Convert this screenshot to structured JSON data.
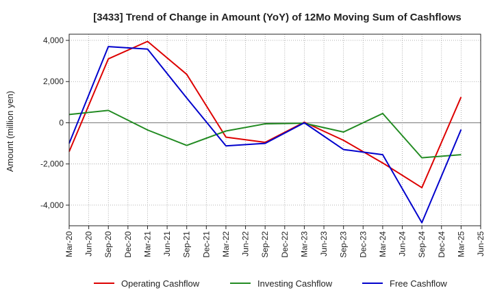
{
  "chart_data": {
    "type": "line",
    "title": "[3433]  Trend of Change in Amount (YoY) of 12Mo Moving Sum of Cashflows",
    "xlabel": "",
    "ylabel": "Amount (million yen)",
    "ylim": [
      -5000,
      4300
    ],
    "yticks": [
      4000,
      2000,
      0,
      -2000,
      -4000
    ],
    "ytick_labels": [
      "4,000",
      "2,000",
      "0",
      "-2,000",
      "-4,000"
    ],
    "categories": [
      "Mar-20",
      "Jun-20",
      "Sep-20",
      "Dec-20",
      "Mar-21",
      "Jun-21",
      "Sep-21",
      "Dec-21",
      "Mar-22",
      "Jun-22",
      "Sep-22",
      "Dec-22",
      "Mar-23",
      "Jun-23",
      "Sep-23",
      "Dec-23",
      "Mar-24",
      "Jun-24",
      "Sep-24",
      "Dec-24",
      "Mar-25",
      "Jun-25"
    ],
    "grid": true,
    "legend_position": "bottom",
    "series": [
      {
        "name": "Operating Cashflow",
        "color": "#dd0000",
        "points": [
          [
            0,
            -1400
          ],
          [
            2,
            3100
          ],
          [
            4,
            3950
          ],
          [
            6,
            2350
          ],
          [
            8,
            -700
          ],
          [
            10,
            -950
          ],
          [
            12,
            30
          ],
          [
            14,
            -850
          ],
          [
            16,
            -1950
          ],
          [
            18,
            -3150
          ],
          [
            20,
            1250
          ]
        ]
      },
      {
        "name": "Investing Cashflow",
        "color": "#228b22",
        "points": [
          [
            0,
            400
          ],
          [
            2,
            600
          ],
          [
            4,
            -350
          ],
          [
            6,
            -1100
          ],
          [
            8,
            -400
          ],
          [
            10,
            -50
          ],
          [
            12,
            -20
          ],
          [
            14,
            -450
          ],
          [
            16,
            450
          ],
          [
            18,
            -1700
          ],
          [
            20,
            -1550
          ]
        ]
      },
      {
        "name": "Free Cashflow",
        "color": "#0000cc",
        "points": [
          [
            0,
            -1000
          ],
          [
            2,
            3700
          ],
          [
            4,
            3580
          ],
          [
            6,
            1200
          ],
          [
            8,
            -1120
          ],
          [
            10,
            -1000
          ],
          [
            12,
            0
          ],
          [
            14,
            -1300
          ],
          [
            16,
            -1550
          ],
          [
            18,
            -4850
          ],
          [
            20,
            -330
          ]
        ]
      }
    ]
  }
}
